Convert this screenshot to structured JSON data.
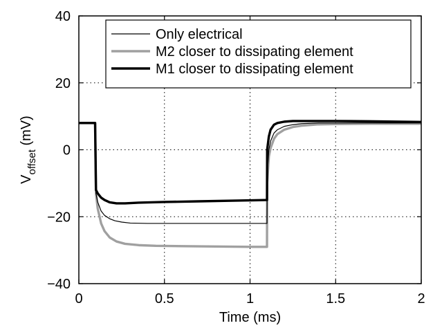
{
  "chart_data": {
    "type": "line",
    "title": "",
    "xlabel": "Time (ms)",
    "ylabel": {
      "main": "V",
      "sub": "offset",
      "unit": " (mV)"
    },
    "xlim": [
      0,
      2
    ],
    "ylim": [
      -40,
      40
    ],
    "xticks": [
      0,
      0.5,
      1,
      1.5,
      2
    ],
    "xtick_labels": [
      "0",
      "0.5",
      "1",
      "1.5",
      "2"
    ],
    "yticks": [
      -40,
      -20,
      0,
      20,
      40
    ],
    "ytick_labels": [
      "−40",
      "−20",
      "0",
      "20",
      "40"
    ],
    "grid": true,
    "legend_position": "top-right",
    "series": [
      {
        "name": "Only electrical",
        "color": "#000000",
        "width": "thin",
        "x": [
          0,
          0.095,
          0.1,
          0.11,
          0.13,
          0.15,
          0.18,
          0.21,
          0.25,
          0.3,
          0.4,
          0.5,
          0.7,
          0.9,
          1.099,
          1.1,
          1.11,
          1.12,
          1.14,
          1.16,
          1.2,
          1.25,
          1.3,
          1.4,
          1.5,
          1.7,
          2.0
        ],
        "y": [
          8,
          8,
          -13,
          -15.6,
          -18.3,
          -19.6,
          -20.6,
          -21.2,
          -21.6,
          -21.9,
          -22,
          -22,
          -22,
          -22,
          -22,
          -8,
          0,
          2.6,
          5,
          6,
          7,
          7.5,
          7.8,
          8,
          8,
          8,
          8
        ]
      },
      {
        "name": "M2 closer to dissipating element",
        "color": "#a0a0a0",
        "width": "thick",
        "x": [
          0,
          0.095,
          0.1,
          0.11,
          0.13,
          0.15,
          0.18,
          0.22,
          0.27,
          0.35,
          0.45,
          0.6,
          0.8,
          1.0,
          1.099,
          1.1,
          1.11,
          1.12,
          1.14,
          1.16,
          1.2,
          1.25,
          1.3,
          1.4,
          1.5,
          1.7,
          2.0
        ],
        "y": [
          8,
          8,
          -13,
          -17.5,
          -22,
          -24.3,
          -26.2,
          -27.4,
          -28.1,
          -28.5,
          -28.7,
          -28.8,
          -28.9,
          -29,
          -29,
          -10,
          -2,
          0.5,
          3.3,
          4.7,
          6,
          6.8,
          7.2,
          7.6,
          7.7,
          7.8,
          7.8
        ]
      },
      {
        "name": "M1 closer to dissipating element",
        "color": "#000000",
        "width": "thick",
        "x": [
          0,
          0.095,
          0.1,
          0.11,
          0.13,
          0.15,
          0.18,
          0.22,
          0.27,
          0.35,
          0.5,
          0.7,
          0.9,
          1.099,
          1.1,
          1.11,
          1.12,
          1.14,
          1.16,
          1.2,
          1.25,
          1.3,
          1.4,
          1.5,
          1.7,
          2.0
        ],
        "y": [
          8,
          8,
          -12,
          -13,
          -14.3,
          -15,
          -15.7,
          -16,
          -16,
          -15.8,
          -15.6,
          -15.4,
          -15.2,
          -15,
          0,
          4,
          6,
          7.5,
          8,
          8.4,
          8.6,
          8.6,
          8.6,
          8.6,
          8.5,
          8.3
        ]
      }
    ]
  }
}
